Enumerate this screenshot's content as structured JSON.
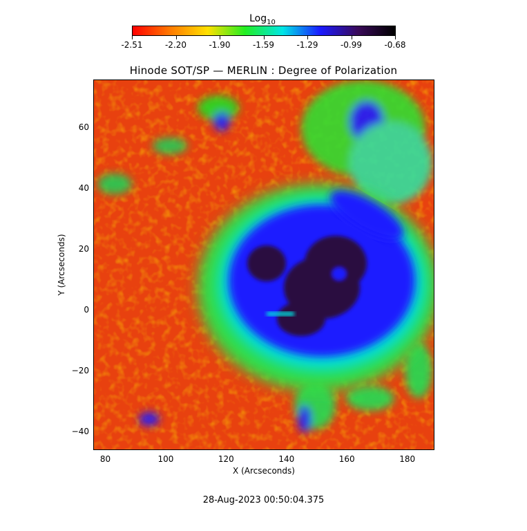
{
  "colorbar": {
    "title": "Log",
    "title_sub": "10",
    "ticks": [
      "-2.51",
      "-2.20",
      "-1.90",
      "-1.59",
      "-1.29",
      "-0.99",
      "-0.68"
    ],
    "colors": [
      "#ff0000",
      "#ff7a00",
      "#ffe000",
      "#22ee22",
      "#00e6e6",
      "#1a1aff",
      "#3a0a5a",
      "#000000"
    ]
  },
  "title": "Hinode SOT/SP — MERLIN : Degree of Polarization",
  "xaxis": {
    "label": "X (Arcseconds)",
    "ticks": [
      "80",
      "100",
      "120",
      "140",
      "160",
      "180"
    ],
    "range": [
      76,
      189
    ]
  },
  "yaxis": {
    "label": "Y (Arcseconds)",
    "ticks": [
      "60",
      "40",
      "20",
      "0",
      "−20",
      "−40"
    ],
    "range": [
      -46,
      76
    ]
  },
  "timestamp": "28‐Aug‐2023 00:50:04.375",
  "image": {
    "subject": "sunspot degree of polarization map",
    "palette_background": "#e8410f",
    "palette_penumbra": "#1e1eff",
    "palette_umbra": "#2b0a40"
  }
}
